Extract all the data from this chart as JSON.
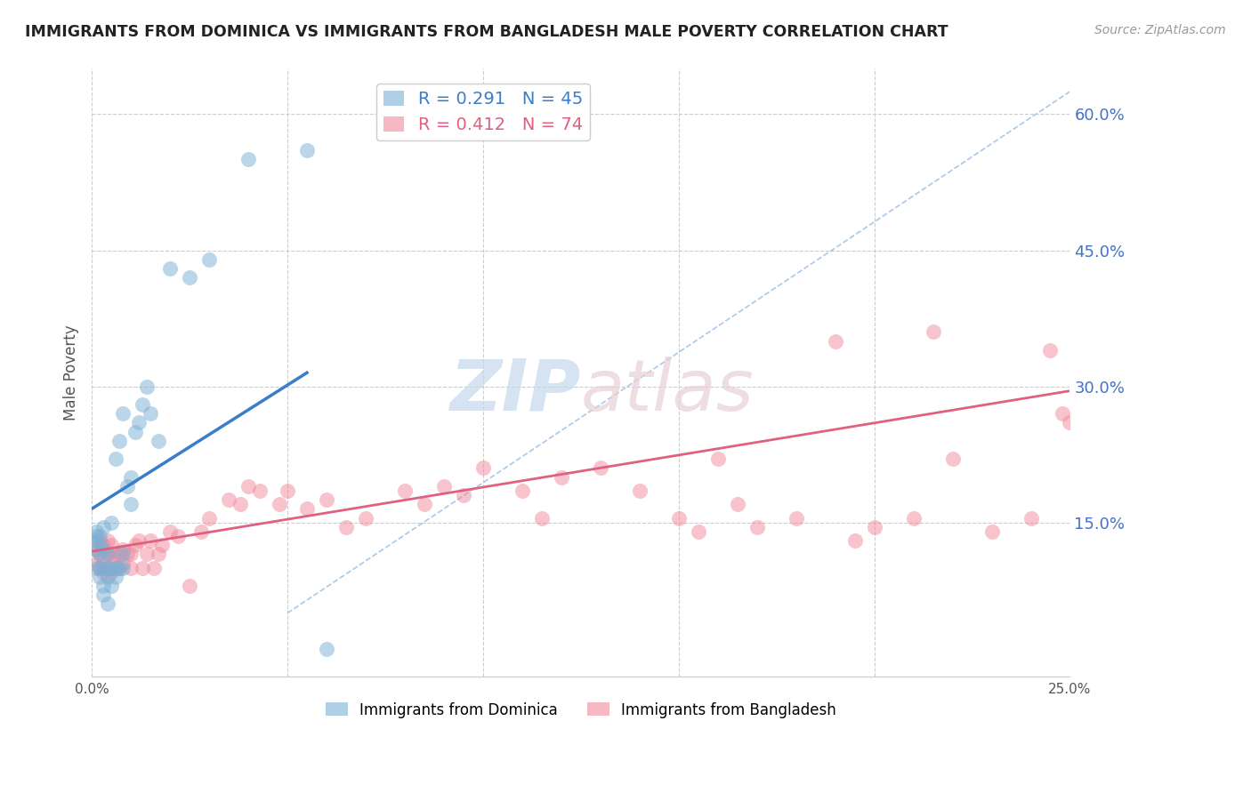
{
  "title": "IMMIGRANTS FROM DOMINICA VS IMMIGRANTS FROM BANGLADESH MALE POVERTY CORRELATION CHART",
  "source": "Source: ZipAtlas.com",
  "ylabel": "Male Poverty",
  "xlim": [
    0.0,
    0.25
  ],
  "ylim": [
    -0.02,
    0.65
  ],
  "x_ticks": [
    0.0,
    0.05,
    0.1,
    0.15,
    0.2,
    0.25
  ],
  "x_tick_labels": [
    "0.0%",
    "",
    "",
    "",
    "",
    "25.0%"
  ],
  "y_ticks_right": [
    0.15,
    0.3,
    0.45,
    0.6
  ],
  "y_tick_labels_right": [
    "15.0%",
    "30.0%",
    "45.0%",
    "60.0%"
  ],
  "grid_color": "#cccccc",
  "background_color": "#ffffff",
  "dominica_color": "#7bafd4",
  "bangladesh_color": "#f0899a",
  "dominica_R": "0.291",
  "dominica_N": "45",
  "bangladesh_R": "0.412",
  "bangladesh_N": "74",
  "dominica_x": [
    0.001,
    0.001,
    0.001,
    0.001,
    0.001,
    0.002,
    0.002,
    0.002,
    0.002,
    0.002,
    0.003,
    0.003,
    0.003,
    0.003,
    0.003,
    0.004,
    0.004,
    0.004,
    0.004,
    0.005,
    0.005,
    0.005,
    0.006,
    0.006,
    0.006,
    0.007,
    0.007,
    0.008,
    0.008,
    0.008,
    0.009,
    0.01,
    0.01,
    0.011,
    0.012,
    0.013,
    0.014,
    0.015,
    0.017,
    0.02,
    0.025,
    0.03,
    0.04,
    0.055,
    0.06
  ],
  "dominica_y": [
    0.1,
    0.12,
    0.13,
    0.135,
    0.14,
    0.09,
    0.1,
    0.115,
    0.125,
    0.135,
    0.07,
    0.08,
    0.1,
    0.12,
    0.145,
    0.06,
    0.09,
    0.1,
    0.115,
    0.08,
    0.1,
    0.15,
    0.09,
    0.1,
    0.22,
    0.1,
    0.24,
    0.1,
    0.115,
    0.27,
    0.19,
    0.17,
    0.2,
    0.25,
    0.26,
    0.28,
    0.3,
    0.27,
    0.24,
    0.43,
    0.42,
    0.44,
    0.55,
    0.56,
    0.01
  ],
  "bangladesh_x": [
    0.001,
    0.001,
    0.002,
    0.002,
    0.002,
    0.003,
    0.003,
    0.003,
    0.004,
    0.004,
    0.004,
    0.005,
    0.005,
    0.005,
    0.006,
    0.006,
    0.007,
    0.007,
    0.008,
    0.008,
    0.009,
    0.01,
    0.01,
    0.011,
    0.012,
    0.013,
    0.014,
    0.015,
    0.016,
    0.017,
    0.018,
    0.02,
    0.022,
    0.025,
    0.028,
    0.03,
    0.035,
    0.038,
    0.04,
    0.043,
    0.048,
    0.05,
    0.055,
    0.06,
    0.065,
    0.07,
    0.08,
    0.085,
    0.09,
    0.095,
    0.1,
    0.11,
    0.115,
    0.12,
    0.13,
    0.14,
    0.15,
    0.155,
    0.16,
    0.165,
    0.17,
    0.18,
    0.19,
    0.195,
    0.2,
    0.21,
    0.215,
    0.22,
    0.23,
    0.24,
    0.245,
    0.248,
    0.25,
    0.252
  ],
  "bangladesh_y": [
    0.105,
    0.12,
    0.1,
    0.115,
    0.13,
    0.095,
    0.11,
    0.125,
    0.1,
    0.115,
    0.13,
    0.095,
    0.11,
    0.125,
    0.1,
    0.115,
    0.1,
    0.115,
    0.105,
    0.12,
    0.115,
    0.1,
    0.115,
    0.125,
    0.13,
    0.1,
    0.115,
    0.13,
    0.1,
    0.115,
    0.125,
    0.14,
    0.135,
    0.08,
    0.14,
    0.155,
    0.175,
    0.17,
    0.19,
    0.185,
    0.17,
    0.185,
    0.165,
    0.175,
    0.145,
    0.155,
    0.185,
    0.17,
    0.19,
    0.18,
    0.21,
    0.185,
    0.155,
    0.2,
    0.21,
    0.185,
    0.155,
    0.14,
    0.22,
    0.17,
    0.145,
    0.155,
    0.35,
    0.13,
    0.145,
    0.155,
    0.36,
    0.22,
    0.14,
    0.155,
    0.34,
    0.27,
    0.26,
    0.29
  ],
  "dominica_line_x": [
    0.0,
    0.055
  ],
  "dominica_line_y": [
    0.165,
    0.315
  ],
  "bangladesh_line_x": [
    0.0,
    0.25
  ],
  "bangladesh_line_y": [
    0.118,
    0.295
  ],
  "diag_line_x": [
    0.05,
    0.25
  ],
  "diag_line_y": [
    0.05,
    0.625
  ]
}
